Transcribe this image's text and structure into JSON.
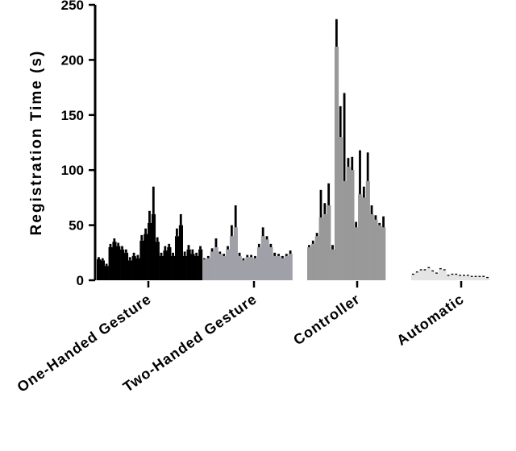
{
  "chart_data": {
    "type": "bar",
    "ylabel": "Registration Time (s)",
    "ylim": [
      0,
      250
    ],
    "yticks": [
      "0",
      "50",
      "100",
      "150",
      "200",
      "250"
    ],
    "grid": false,
    "legend": "none",
    "categories": [
      "One-Handed Gesture",
      "Two-Handed Gesture",
      "Controller",
      "Automatic"
    ],
    "groups": [
      {
        "name": "One-Handed Gesture",
        "color": "#000000",
        "values": [
          19,
          18,
          13,
          30,
          35,
          31,
          28,
          25,
          18,
          22,
          20,
          36,
          42,
          52,
          60,
          35,
          22,
          27,
          30,
          22,
          40,
          50,
          22,
          28,
          24,
          22,
          28
        ],
        "errors": [
          2,
          2,
          2,
          3,
          3,
          3,
          3,
          3,
          3,
          3,
          3,
          5,
          5,
          11,
          25,
          4,
          3,
          4,
          3,
          3,
          7,
          10,
          4,
          4,
          4,
          3,
          3
        ]
      },
      {
        "name": "Two-Handed Gesture",
        "color": "#a0a0a8",
        "values": [
          19,
          20,
          26,
          30,
          24,
          22,
          28,
          40,
          48,
          22,
          18,
          21,
          21,
          20,
          30,
          40,
          37,
          30,
          22,
          22,
          20,
          22,
          24
        ],
        "errors": [
          1,
          2,
          3,
          8,
          2,
          2,
          3,
          10,
          20,
          3,
          2,
          2,
          2,
          2,
          3,
          8,
          3,
          3,
          3,
          2,
          2,
          2,
          3
        ]
      },
      {
        "name": "Controller",
        "color": "#999999",
        "values": [
          30,
          33,
          40,
          57,
          60,
          68,
          28,
          212,
          130,
          90,
          103,
          100,
          48,
          78,
          75,
          90,
          60,
          55,
          50,
          48
        ],
        "errors": [
          2,
          3,
          3,
          25,
          10,
          20,
          4,
          25,
          28,
          80,
          8,
          12,
          5,
          40,
          10,
          26,
          8,
          4,
          2,
          10
        ]
      },
      {
        "name": "Automatic",
        "color": "#e4e4e4",
        "values": [
          5,
          7,
          9,
          9,
          11,
          8,
          6,
          10,
          9,
          4,
          5,
          5,
          4,
          4,
          4,
          3,
          3,
          3,
          3,
          2
        ],
        "errors": [
          1,
          1,
          1,
          1,
          1,
          1,
          1,
          1,
          1,
          1,
          1,
          1,
          1,
          1,
          1,
          1,
          1,
          1,
          1,
          1
        ]
      }
    ]
  }
}
